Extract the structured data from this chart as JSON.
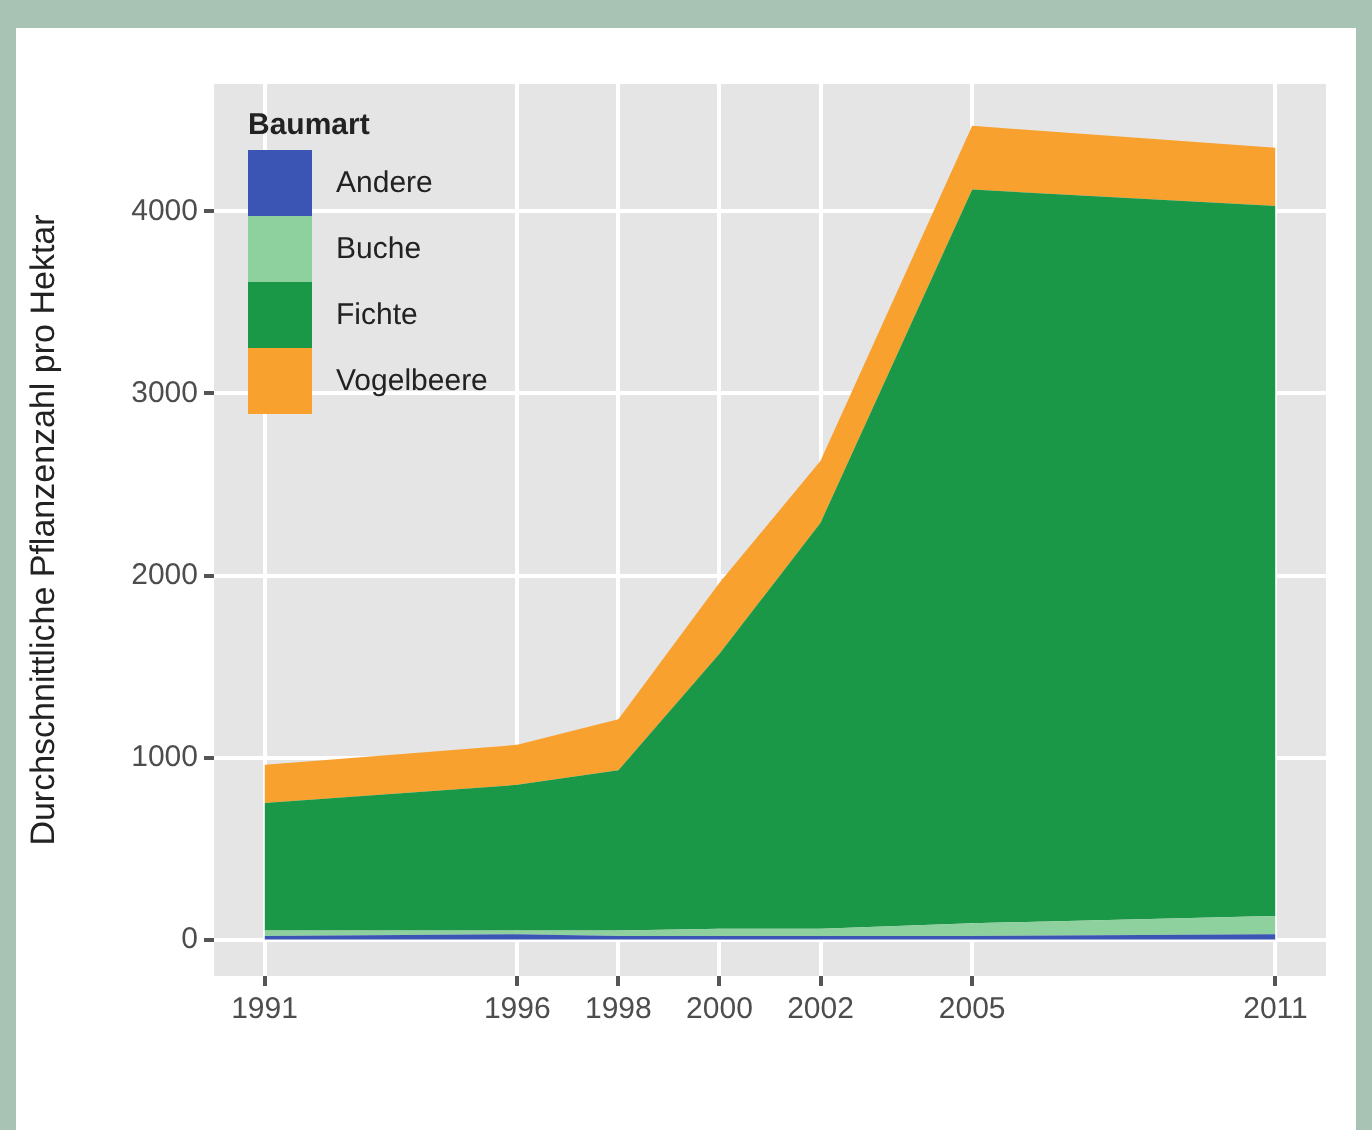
{
  "chart_data": {
    "type": "area",
    "stacked": true,
    "ylabel": "Durchschnittliche Pflanzenzahl pro Hektar",
    "legend_title": "Baumart",
    "legend": "top left",
    "grid": true,
    "x": [
      1991,
      1996,
      1998,
      2000,
      2002,
      2005,
      2011
    ],
    "xlim": [
      1990,
      2012
    ],
    "xticks": [
      1991,
      1996,
      1998,
      2000,
      2002,
      2005,
      2011
    ],
    "ylim": [
      -200,
      4700
    ],
    "yticks": [
      0,
      1000,
      2000,
      3000,
      4000
    ],
    "series": [
      {
        "name": "Andere",
        "color": "#3a55b4",
        "values": [
          20,
          30,
          20,
          20,
          20,
          20,
          30
        ]
      },
      {
        "name": "Buche",
        "color": "#8fd19e",
        "values": [
          30,
          20,
          30,
          40,
          40,
          70,
          100
        ]
      },
      {
        "name": "Fichte",
        "color": "#1a9848",
        "values": [
          700,
          800,
          880,
          1510,
          2230,
          4030,
          3900
        ]
      },
      {
        "name": "Vogelbeere",
        "color": "#f9a12e",
        "values": [
          210,
          220,
          280,
          390,
          340,
          350,
          320
        ]
      }
    ]
  }
}
